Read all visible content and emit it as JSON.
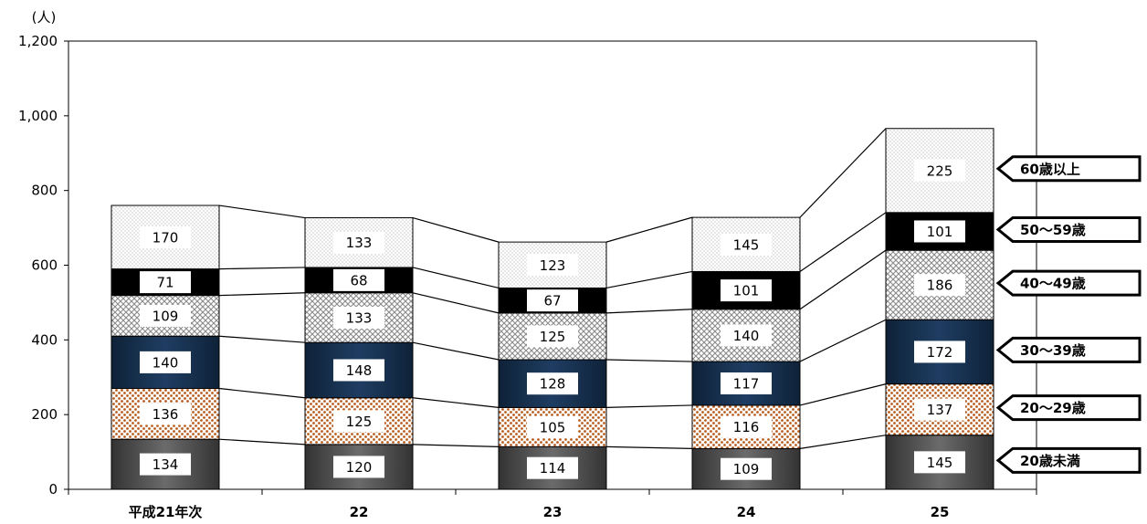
{
  "unit_label": "(人)",
  "chart_data": {
    "type": "bar",
    "stacked": true,
    "categories": [
      "平成21年次",
      "22",
      "23",
      "24",
      "25"
    ],
    "series": [
      {
        "name": "20歳未満",
        "values": [
          134,
          120,
          114,
          109,
          145
        ],
        "pattern": "dark-gray"
      },
      {
        "name": "20〜29歳",
        "values": [
          136,
          125,
          105,
          116,
          137
        ],
        "pattern": "orange-dots"
      },
      {
        "name": "30〜39歳",
        "values": [
          140,
          148,
          128,
          117,
          172
        ],
        "pattern": "navy"
      },
      {
        "name": "40〜49歳",
        "values": [
          109,
          133,
          125,
          140,
          186
        ],
        "pattern": "gray-crosshatch"
      },
      {
        "name": "50〜59歳",
        "values": [
          71,
          68,
          67,
          101,
          101
        ],
        "pattern": "black"
      },
      {
        "name": "60歳以上",
        "values": [
          170,
          133,
          123,
          145,
          225
        ],
        "pattern": "light-dots"
      }
    ],
    "ylim": [
      0,
      1200
    ],
    "yticks": [
      "0",
      "200",
      "400",
      "600",
      "800",
      "1,000",
      "1,200"
    ],
    "grid": false,
    "legend_position": "right",
    "series_lines": true,
    "colors": {
      "navy": "#17304f",
      "orange": "#b85c1e",
      "dark_gray": "#595959",
      "black": "#000000"
    }
  }
}
